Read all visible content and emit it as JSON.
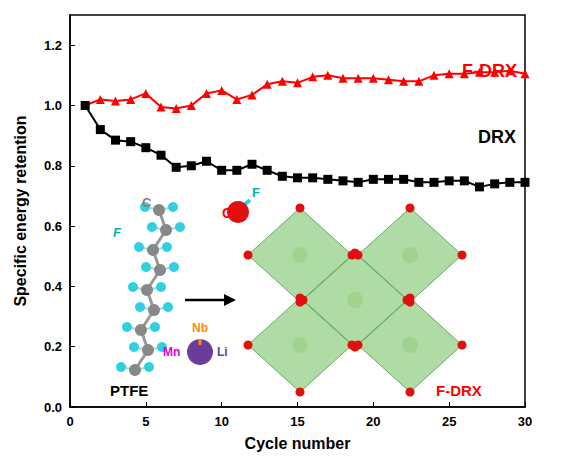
{
  "chart_data": {
    "type": "line",
    "xlabel": "Cycle number",
    "ylabel": "Specific energy retention",
    "x": [
      1,
      2,
      3,
      4,
      5,
      6,
      7,
      8,
      9,
      10,
      11,
      12,
      13,
      14,
      15,
      16,
      17,
      18,
      19,
      20,
      21,
      22,
      23,
      24,
      25,
      26,
      27,
      28,
      29,
      30
    ],
    "series": [
      {
        "name": "F-DRX",
        "color": "#ff0000",
        "marker": "triangle",
        "values": [
          1.0,
          1.02,
          1.015,
          1.02,
          1.04,
          0.995,
          0.99,
          1.0,
          1.04,
          1.05,
          1.02,
          1.035,
          1.07,
          1.08,
          1.075,
          1.095,
          1.1,
          1.09,
          1.09,
          1.09,
          1.085,
          1.08,
          1.08,
          1.1,
          1.105,
          1.105,
          1.11,
          1.11,
          1.115,
          1.105
        ]
      },
      {
        "name": "DRX",
        "color": "#000000",
        "marker": "square",
        "values": [
          1.0,
          0.92,
          0.885,
          0.88,
          0.86,
          0.835,
          0.795,
          0.8,
          0.815,
          0.785,
          0.785,
          0.805,
          0.785,
          0.765,
          0.76,
          0.76,
          0.755,
          0.75,
          0.745,
          0.755,
          0.755,
          0.755,
          0.745,
          0.745,
          0.75,
          0.75,
          0.73,
          0.74,
          0.745,
          0.745
        ]
      }
    ],
    "xlim": [
      0,
      30
    ],
    "xticks": [
      0,
      5,
      10,
      15,
      20,
      25,
      30
    ],
    "ylim": [
      0,
      1.3
    ],
    "yticks": [
      {
        "value": 0,
        "label": "0.0"
      },
      0.2,
      0.4,
      0.6,
      0.8,
      {
        "value": 1,
        "label": "1.0"
      },
      1.2
    ],
    "grid": false,
    "annotations": [
      {
        "text": "C",
        "color": "#808080"
      },
      {
        "text": "F",
        "color": "#00b0b0"
      },
      {
        "text": "O",
        "color": "#ff0000"
      },
      {
        "text": "F",
        "color": "#00b0b0"
      },
      {
        "text": "Nb",
        "color": "#ff8c00"
      },
      {
        "text": "Mn",
        "color": "#e000e0"
      },
      {
        "text": "Li",
        "color": "#6a3d9a"
      },
      {
        "text": "PTFE",
        "color": "#000000"
      },
      {
        "text": "F-DRX",
        "color": "#ff0000"
      }
    ]
  }
}
